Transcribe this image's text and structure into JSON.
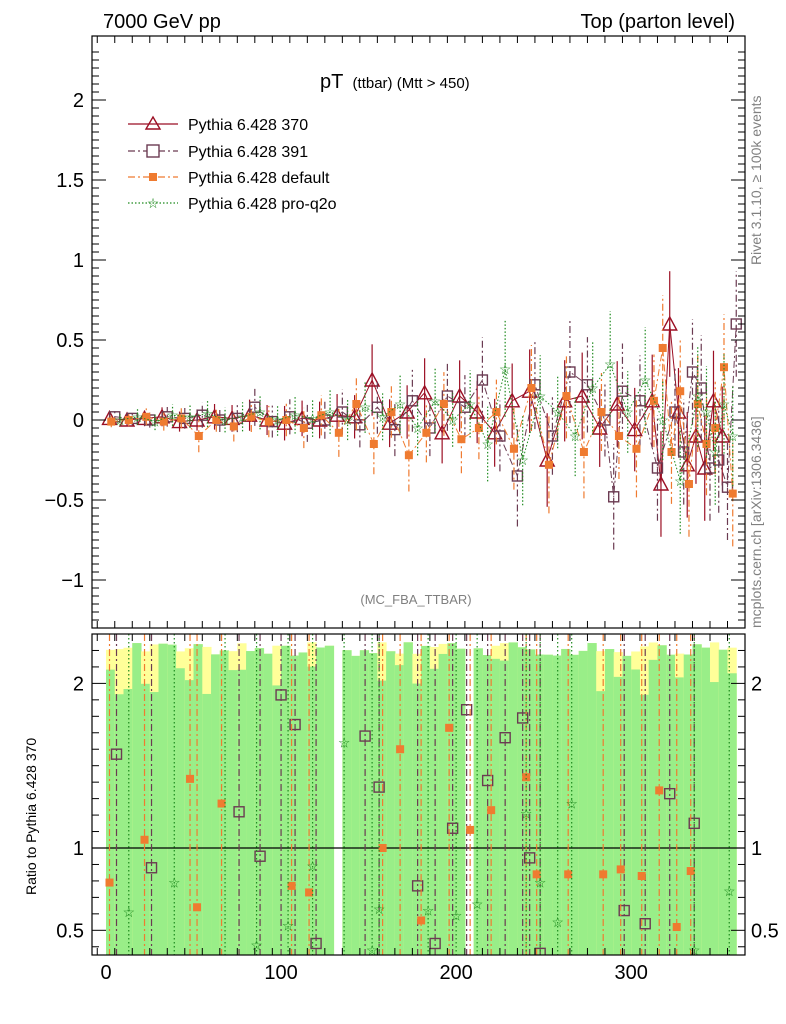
{
  "header": {
    "left": "7000 GeV pp",
    "right": "Top (parton level)"
  },
  "side_labels": {
    "rivet": "Rivet 3.1.10, ≥ 100k events",
    "mcplots": "mcplots.cern.ch [arXiv:1306.3436]"
  },
  "plot_title": {
    "main": "pT",
    "sub": "(ttbar) (Mtt > 450)"
  },
  "analysis_tag": "(MC_FBA_TTBAR)",
  "ratio_ylabel": "Ratio to Pythia 6.428 370",
  "chart_data": [
    {
      "type": "scatter",
      "panel": "main",
      "xlim": [
        -8,
        365
      ],
      "ylim": [
        -1.3,
        2.4
      ],
      "yticks": [
        -1,
        -0.5,
        0,
        0.5,
        1,
        1.5,
        2
      ],
      "ytick_labels": [
        "−1",
        "−0.5",
        "0",
        "0.5",
        "1",
        "1.5",
        "2"
      ],
      "legend_position": "top-left",
      "series": [
        {
          "name": "Pythia 6.428 370",
          "color": "#9b0f24",
          "marker": "triangle-open",
          "line": "solid",
          "x": [
            2,
            12,
            22,
            32,
            42,
            52,
            62,
            72,
            82,
            92,
            102,
            112,
            122,
            132,
            142,
            152,
            162,
            172,
            182,
            192,
            202,
            212,
            222,
            232,
            242,
            252,
            262,
            272,
            282,
            292,
            302,
            312,
            317,
            322,
            327,
            332,
            337,
            342,
            347,
            352
          ],
          "y": [
            0.01,
            0.0,
            0.01,
            0.02,
            -0.01,
            0.0,
            0.02,
            0.01,
            0.03,
            0.0,
            -0.02,
            0.01,
            0.0,
            0.03,
            0.02,
            0.25,
            -0.02,
            0.05,
            0.17,
            -0.08,
            0.15,
            0.05,
            -0.08,
            0.12,
            0.18,
            -0.25,
            0.12,
            0.15,
            -0.05,
            0.1,
            -0.06,
            0.12,
            -0.4,
            0.6,
            0.05,
            -0.28,
            -0.1,
            -0.3,
            0.12,
            -0.1
          ]
        },
        {
          "name": "Pythia 6.428 391",
          "color": "#6b3b52",
          "marker": "square-open",
          "line": "dashdot",
          "x": [
            5,
            15,
            25,
            35,
            45,
            55,
            65,
            75,
            85,
            95,
            105,
            115,
            125,
            135,
            145,
            155,
            165,
            175,
            185,
            195,
            205,
            215,
            225,
            235,
            245,
            255,
            265,
            275,
            285,
            290,
            295,
            305,
            315,
            325,
            330,
            335,
            340,
            345,
            350,
            355,
            360
          ],
          "y": [
            0.02,
            0.01,
            0.0,
            0.02,
            0.01,
            0.03,
            0.0,
            0.01,
            0.08,
            -0.01,
            0.02,
            -0.02,
            0.0,
            0.05,
            -0.03,
            0.08,
            -0.06,
            0.12,
            -0.05,
            0.15,
            0.08,
            0.25,
            -0.1,
            -0.35,
            0.22,
            -0.1,
            0.3,
            0.22,
            0.0,
            -0.48,
            0.18,
            0.12,
            -0.3,
            0.05,
            -0.2,
            0.3,
            0.2,
            -0.3,
            -0.25,
            -0.42,
            0.6
          ]
        },
        {
          "name": "Pythia 6.428 default",
          "color": "#ef7b30",
          "marker": "square-filled",
          "line": "dashdot",
          "x": [
            3,
            13,
            23,
            33,
            43,
            53,
            63,
            73,
            83,
            93,
            103,
            113,
            123,
            133,
            143,
            153,
            163,
            173,
            183,
            193,
            203,
            213,
            223,
            233,
            243,
            253,
            263,
            273,
            283,
            293,
            303,
            313,
            318,
            323,
            328,
            333,
            338,
            343,
            348,
            353,
            358
          ],
          "y": [
            -0.01,
            0.0,
            0.02,
            -0.01,
            0.01,
            -0.1,
            0.0,
            -0.04,
            0.02,
            -0.01,
            0.0,
            -0.05,
            0.03,
            -0.08,
            0.1,
            -0.15,
            0.05,
            -0.22,
            -0.08,
            0.1,
            -0.12,
            -0.05,
            0.05,
            -0.18,
            0.2,
            -0.28,
            0.15,
            -0.2,
            0.05,
            -0.1,
            -0.18,
            0.12,
            0.45,
            -0.2,
            0.18,
            -0.4,
            0.1,
            -0.15,
            -0.05,
            0.33,
            -0.46
          ]
        },
        {
          "name": "Pythia 6.428 pro-q2o",
          "color": "#1e8a1e",
          "marker": "star",
          "line": "dotted",
          "x": [
            8,
            18,
            28,
            38,
            48,
            58,
            68,
            78,
            88,
            98,
            108,
            118,
            128,
            138,
            148,
            158,
            168,
            178,
            188,
            198,
            208,
            218,
            228,
            238,
            248,
            258,
            268,
            278,
            288,
            298,
            308,
            318,
            328,
            338,
            343,
            348,
            353,
            358
          ],
          "y": [
            0.0,
            0.02,
            -0.01,
            0.03,
            0.02,
            0.04,
            0.0,
            0.02,
            0.05,
            0.0,
            0.03,
            0.01,
            0.05,
            0.0,
            0.08,
            0.02,
            0.1,
            -0.05,
            0.12,
            0.0,
            0.1,
            -0.15,
            0.32,
            -0.25,
            0.15,
            0.05,
            -0.1,
            0.2,
            0.35,
            0.05,
            0.25,
            0.0,
            -0.38,
            0.15,
            0.05,
            -0.2,
            0.1,
            -0.1
          ]
        }
      ]
    },
    {
      "type": "scatter",
      "panel": "ratio",
      "xlim": [
        -8,
        365
      ],
      "ylim": [
        0.35,
        2.3
      ],
      "xticks": [
        0,
        100,
        200,
        300
      ],
      "yticks": [
        0.5,
        1,
        2
      ],
      "reference_line": 1,
      "series": [
        {
          "name": "Pythia 6.428 391",
          "color": "#6b3b52",
          "marker": "square-open",
          "x": [
            6,
            26,
            76,
            88,
            100,
            108,
            120,
            148,
            156,
            178,
            188,
            198,
            206,
            218,
            228,
            238,
            242,
            248,
            296,
            308,
            322,
            336
          ],
          "y": [
            1.57,
            0.88,
            1.22,
            0.95,
            1.93,
            1.75,
            0.42,
            1.68,
            1.37,
            0.77,
            0.42,
            1.12,
            1.84,
            1.41,
            1.67,
            1.79,
            0.94,
            0.36,
            0.62,
            0.54,
            1.33,
            1.15
          ]
        },
        {
          "name": "Pythia 6.428 default",
          "color": "#ef7b30",
          "marker": "square-filled",
          "x": [
            2,
            22,
            48,
            52,
            66,
            106,
            116,
            158,
            168,
            180,
            196,
            208,
            220,
            240,
            246,
            264,
            284,
            294,
            306,
            316,
            326,
            334
          ],
          "y": [
            0.79,
            1.05,
            1.42,
            0.64,
            1.27,
            0.77,
            0.73,
            1.0,
            1.6,
            0.56,
            1.73,
            1.11,
            1.23,
            1.43,
            0.84,
            0.84,
            0.84,
            0.87,
            0.83,
            1.35,
            0.52,
            0.86
          ]
        },
        {
          "name": "Pythia 6.428 pro-q2o",
          "color": "#1e8a1e",
          "marker": "star",
          "x": [
            13,
            39,
            68,
            86,
            104,
            118,
            136,
            152,
            156,
            184,
            200,
            212,
            240,
            248,
            258,
            266,
            336,
            356
          ],
          "y": [
            0.61,
            0.79,
            0.33,
            0.41,
            0.53,
            0.89,
            1.64,
            0.38,
            0.63,
            0.62,
            0.59,
            0.66,
            1.21,
            0.79,
            0.55,
            1.27,
            0.38,
            0.74
          ]
        }
      ]
    }
  ]
}
